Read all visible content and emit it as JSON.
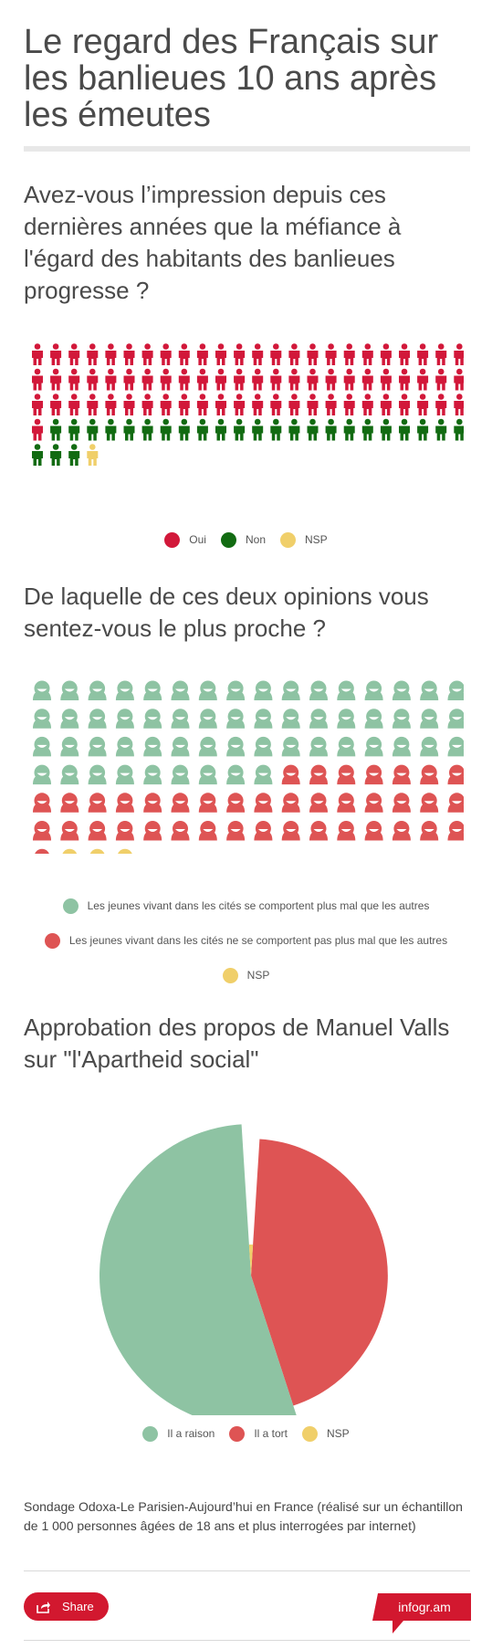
{
  "title": "Le regard des Français sur les banlieues 10 ans après les émeutes",
  "colors": {
    "red": "#d2183a",
    "green": "#126b12",
    "yellow": "#f0cf6a",
    "mint": "#8ec3a3",
    "coral": "#de5454",
    "share": "#d2182f"
  },
  "chart_data": [
    {
      "type": "pictogram",
      "icon": "person-icon",
      "title": "Avez-vous l’impression depuis ces dernières années que la méfiance à l'égard des habitants des banlieues progresse ?",
      "series": [
        {
          "name": "Oui",
          "value": 73,
          "color": "#d2183a"
        },
        {
          "name": "Non",
          "value": 26,
          "color": "#126b12"
        },
        {
          "name": "NSP",
          "value": 1,
          "color": "#f0cf6a"
        }
      ],
      "legend_position": "bottom"
    },
    {
      "type": "pictogram",
      "icon": "smiley-icon",
      "title": "De laquelle de ces deux opinions vous sentez-vous le plus proche ?",
      "series": [
        {
          "name": "Les jeunes vivant dans les cités se comportent plus mal que les autres",
          "value": 57,
          "color": "#8ec3a3"
        },
        {
          "name": "Les jeunes vivant dans les cités ne se comportent pas plus mal que les autres",
          "value": 40,
          "color": "#de5454"
        },
        {
          "name": "NSP",
          "value": 3,
          "color": "#f0cf6a"
        }
      ],
      "legend_position": "bottom"
    },
    {
      "type": "pie",
      "variant": "variable-radius",
      "title": "Approbation des propos de Manuel Valls sur \"l'Apartheid social\"",
      "series": [
        {
          "name": "Il a raison",
          "value": 54,
          "color": "#8ec3a3"
        },
        {
          "name": "Il a tort",
          "value": 44,
          "color": "#de5454"
        },
        {
          "name": "NSP",
          "value": 2,
          "color": "#f0cf6a"
        }
      ],
      "legend_position": "bottom"
    }
  ],
  "source": "Sondage Odoxa-Le Parisien-Aujourd’hui en France (réalisé sur un échantillon de 1 000 personnes âgées de 18 ans et plus interrogées par internet)",
  "share_label": "Share",
  "brand": "infogr.am"
}
